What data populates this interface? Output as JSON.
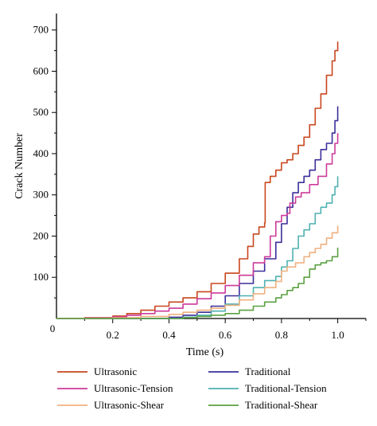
{
  "chart_data": {
    "type": "line",
    "xlabel": "Time (s)",
    "ylabel": "Crack Number",
    "xlim": [
      0,
      1.1
    ],
    "ylim": [
      0,
      740
    ],
    "x_ticks": [
      0.2,
      0.4,
      0.6,
      0.8,
      1.0
    ],
    "x_tick_labels": [
      "0.2",
      "0.4",
      "0.6",
      "0.8",
      "1.0"
    ],
    "y_ticks": [
      100,
      200,
      300,
      400,
      500,
      600,
      700
    ],
    "y_tick_labels": [
      "100",
      "200",
      "300",
      "400",
      "500",
      "600",
      "700"
    ],
    "origin_label": "0",
    "grid": false,
    "legend_position": "bottom",
    "series": [
      {
        "name": "Ultrasonic",
        "color": "#c8461e",
        "points": [
          [
            0,
            0
          ],
          [
            0.1,
            2
          ],
          [
            0.2,
            6
          ],
          [
            0.25,
            12
          ],
          [
            0.3,
            20
          ],
          [
            0.35,
            30
          ],
          [
            0.4,
            40
          ],
          [
            0.45,
            50
          ],
          [
            0.5,
            65
          ],
          [
            0.55,
            85
          ],
          [
            0.6,
            110
          ],
          [
            0.65,
            145
          ],
          [
            0.68,
            175
          ],
          [
            0.7,
            205
          ],
          [
            0.72,
            222
          ],
          [
            0.74,
            232
          ],
          [
            0.742,
            330
          ],
          [
            0.76,
            345
          ],
          [
            0.78,
            360
          ],
          [
            0.8,
            378
          ],
          [
            0.82,
            385
          ],
          [
            0.84,
            400
          ],
          [
            0.86,
            420
          ],
          [
            0.88,
            440
          ],
          [
            0.9,
            470
          ],
          [
            0.92,
            510
          ],
          [
            0.94,
            545
          ],
          [
            0.96,
            590
          ],
          [
            0.98,
            625
          ],
          [
            0.99,
            650
          ],
          [
            1.0,
            672
          ]
        ]
      },
      {
        "name": "Traditional",
        "color": "#3a2f9a",
        "points": [
          [
            0,
            0
          ],
          [
            0.2,
            0
          ],
          [
            0.4,
            3
          ],
          [
            0.45,
            8
          ],
          [
            0.5,
            15
          ],
          [
            0.55,
            30
          ],
          [
            0.6,
            55
          ],
          [
            0.65,
            85
          ],
          [
            0.7,
            115
          ],
          [
            0.74,
            145
          ],
          [
            0.78,
            185
          ],
          [
            0.8,
            230
          ],
          [
            0.82,
            270
          ],
          [
            0.84,
            305
          ],
          [
            0.86,
            330
          ],
          [
            0.88,
            345
          ],
          [
            0.9,
            360
          ],
          [
            0.92,
            385
          ],
          [
            0.94,
            410
          ],
          [
            0.96,
            425
          ],
          [
            0.98,
            450
          ],
          [
            0.99,
            480
          ],
          [
            1.0,
            515
          ]
        ]
      },
      {
        "name": "Ultrasonic-Tension",
        "color": "#cc3a9a",
        "points": [
          [
            0,
            0
          ],
          [
            0.1,
            1
          ],
          [
            0.2,
            4
          ],
          [
            0.25,
            8
          ],
          [
            0.3,
            12
          ],
          [
            0.35,
            18
          ],
          [
            0.4,
            25
          ],
          [
            0.45,
            35
          ],
          [
            0.5,
            48
          ],
          [
            0.55,
            62
          ],
          [
            0.6,
            80
          ],
          [
            0.65,
            105
          ],
          [
            0.7,
            135
          ],
          [
            0.74,
            150
          ],
          [
            0.76,
            200
          ],
          [
            0.78,
            235
          ],
          [
            0.8,
            250
          ],
          [
            0.82,
            255
          ],
          [
            0.83,
            280
          ],
          [
            0.85,
            295
          ],
          [
            0.87,
            305
          ],
          [
            0.9,
            325
          ],
          [
            0.93,
            345
          ],
          [
            0.96,
            375
          ],
          [
            0.98,
            400
          ],
          [
            0.99,
            425
          ],
          [
            1.0,
            450
          ]
        ]
      },
      {
        "name": "Traditional-Tension",
        "color": "#4fb0b0",
        "points": [
          [
            0,
            0
          ],
          [
            0.3,
            0
          ],
          [
            0.45,
            3
          ],
          [
            0.5,
            8
          ],
          [
            0.55,
            18
          ],
          [
            0.6,
            35
          ],
          [
            0.65,
            55
          ],
          [
            0.7,
            75
          ],
          [
            0.74,
            92
          ],
          [
            0.78,
            102
          ],
          [
            0.8,
            125
          ],
          [
            0.82,
            140
          ],
          [
            0.84,
            170
          ],
          [
            0.86,
            200
          ],
          [
            0.88,
            215
          ],
          [
            0.9,
            230
          ],
          [
            0.92,
            255
          ],
          [
            0.94,
            270
          ],
          [
            0.96,
            280
          ],
          [
            0.98,
            300
          ],
          [
            0.99,
            320
          ],
          [
            1.0,
            345
          ]
        ]
      },
      {
        "name": "Ultrasonic-Shear",
        "color": "#f0b080",
        "points": [
          [
            0,
            0
          ],
          [
            0.2,
            2
          ],
          [
            0.3,
            5
          ],
          [
            0.4,
            10
          ],
          [
            0.45,
            15
          ],
          [
            0.5,
            20
          ],
          [
            0.55,
            25
          ],
          [
            0.6,
            32
          ],
          [
            0.65,
            45
          ],
          [
            0.7,
            60
          ],
          [
            0.74,
            75
          ],
          [
            0.78,
            90
          ],
          [
            0.8,
            115
          ],
          [
            0.82,
            125
          ],
          [
            0.85,
            135
          ],
          [
            0.88,
            150
          ],
          [
            0.9,
            160
          ],
          [
            0.92,
            170
          ],
          [
            0.94,
            180
          ],
          [
            0.96,
            195
          ],
          [
            0.98,
            208
          ],
          [
            1.0,
            225
          ]
        ]
      },
      {
        "name": "Traditional-Shear",
        "color": "#5aa040",
        "points": [
          [
            0,
            0
          ],
          [
            0.3,
            0
          ],
          [
            0.45,
            2
          ],
          [
            0.5,
            5
          ],
          [
            0.55,
            8
          ],
          [
            0.6,
            12
          ],
          [
            0.65,
            20
          ],
          [
            0.7,
            30
          ],
          [
            0.74,
            40
          ],
          [
            0.78,
            50
          ],
          [
            0.8,
            58
          ],
          [
            0.82,
            68
          ],
          [
            0.84,
            75
          ],
          [
            0.86,
            85
          ],
          [
            0.88,
            100
          ],
          [
            0.9,
            120
          ],
          [
            0.92,
            130
          ],
          [
            0.94,
            135
          ],
          [
            0.96,
            140
          ],
          [
            0.98,
            150
          ],
          [
            1.0,
            172
          ]
        ]
      }
    ]
  }
}
